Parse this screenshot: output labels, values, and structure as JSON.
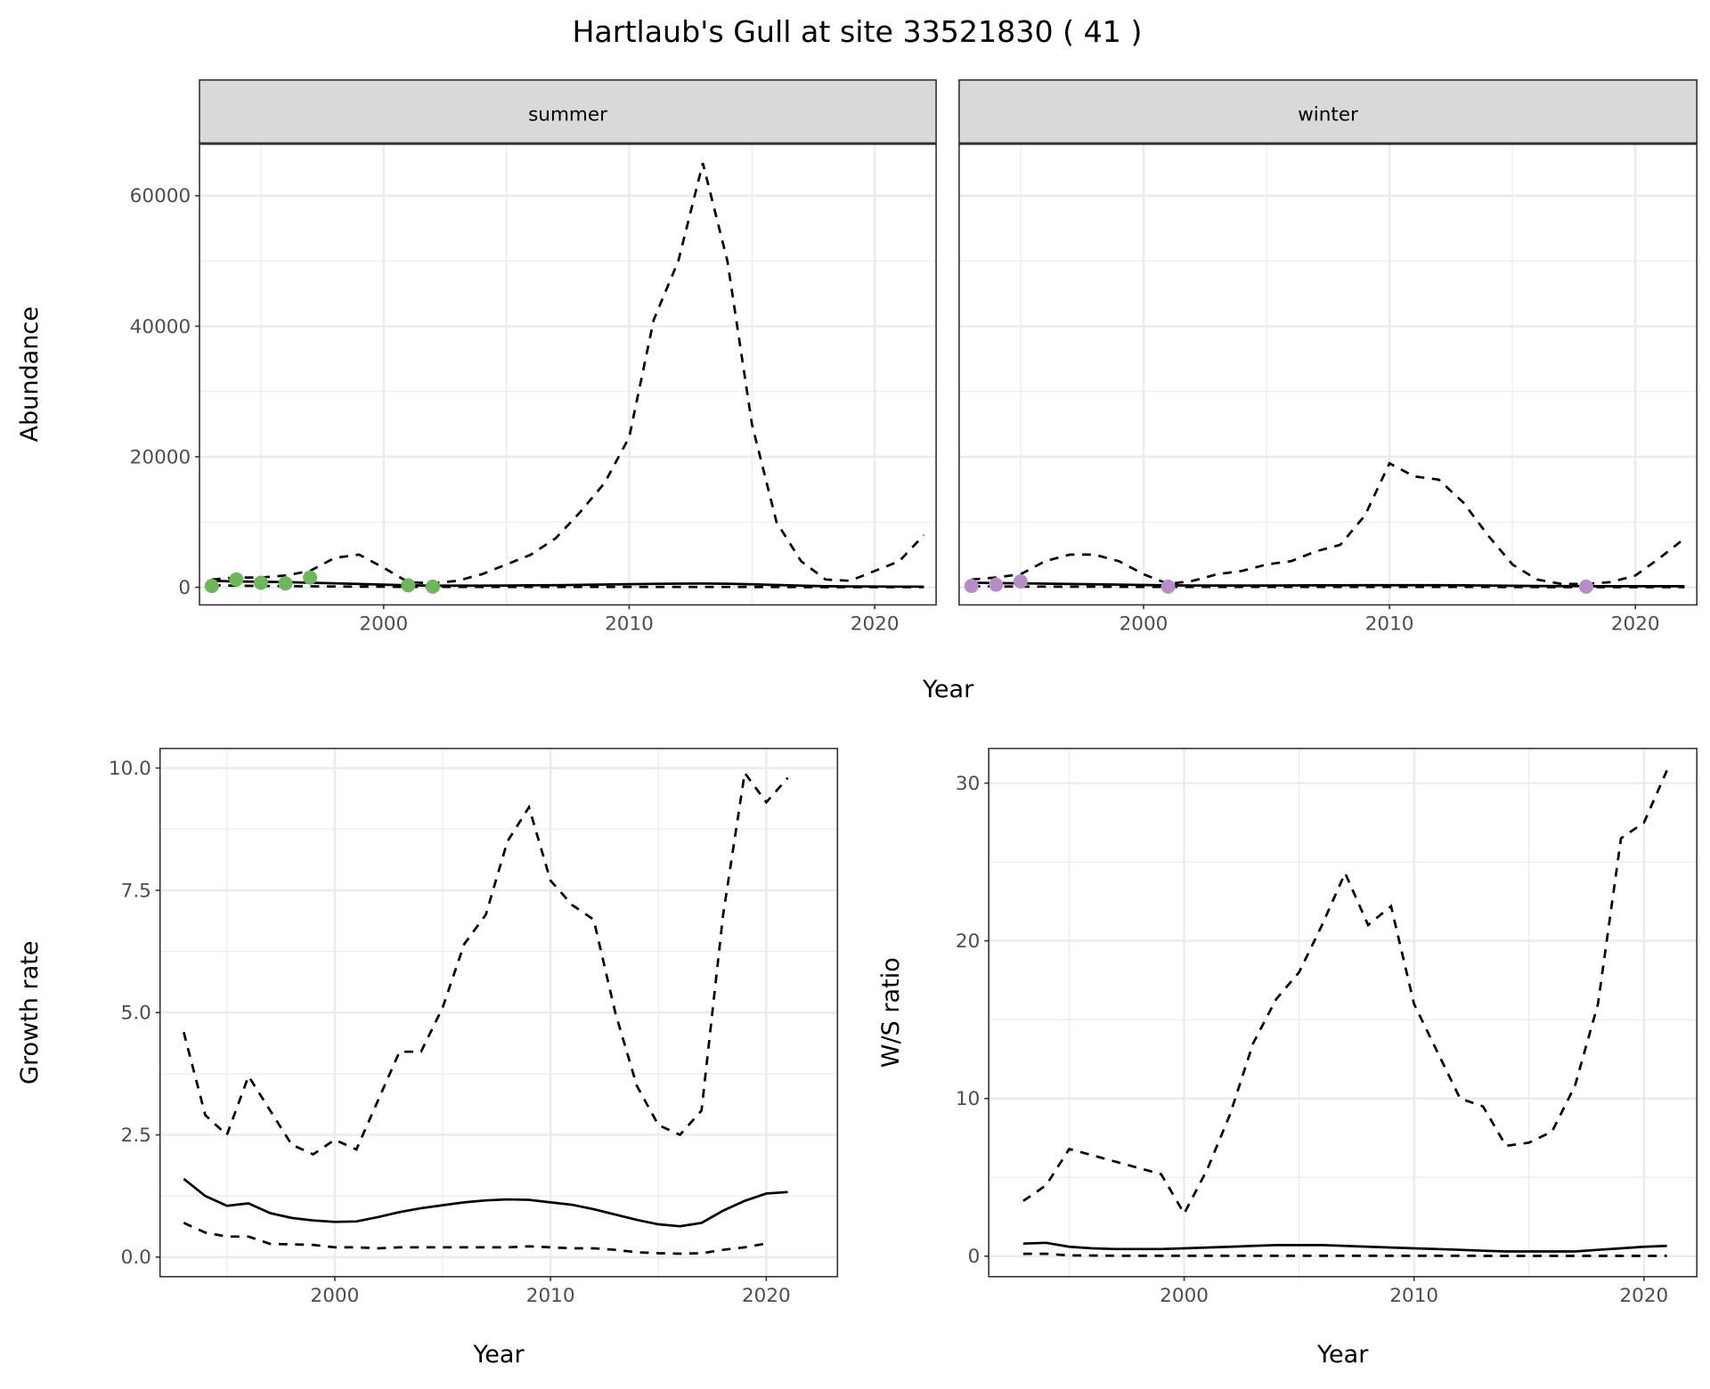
{
  "title": "Hartlaub's Gull at site 33521830 ( 41 )",
  "colors": {
    "summer": "#6DB65B",
    "winter": "#B68DC8",
    "line": "#000000",
    "grid": "#EBEBEB",
    "strip": "#D9D9D9"
  },
  "chart_data": [
    {
      "id": "abundance",
      "type": "line",
      "facets": [
        "summer",
        "winter"
      ],
      "xlabel": "Year",
      "ylabel": "Abundance",
      "xticks": [
        2000,
        2010,
        2020
      ],
      "yticks": [
        0,
        20000,
        40000,
        60000
      ],
      "xlim": [
        1992.5,
        2022.5
      ],
      "ylim": [
        -2700,
        68000
      ],
      "years": [
        1993,
        1994,
        1995,
        1996,
        1997,
        1998,
        1999,
        2000,
        2001,
        2002,
        2003,
        2004,
        2005,
        2006,
        2007,
        2008,
        2009,
        2010,
        2011,
        2012,
        2013,
        2014,
        2015,
        2016,
        2017,
        2018,
        2019,
        2020,
        2021,
        2022
      ],
      "summer": {
        "upper": [
          1200,
          1500,
          1500,
          1800,
          2500,
          4500,
          5000,
          3000,
          800,
          600,
          1000,
          2000,
          3500,
          5000,
          7500,
          11500,
          16000,
          23000,
          41000,
          50000,
          65000,
          50000,
          25000,
          10000,
          4000,
          1200,
          1000,
          2500,
          4000,
          8000
        ],
        "mean": [
          1000,
          900,
          850,
          800,
          700,
          600,
          500,
          400,
          300,
          250,
          250,
          250,
          270,
          300,
          330,
          370,
          420,
          470,
          520,
          560,
          580,
          540,
          460,
          350,
          250,
          180,
          140,
          120,
          110,
          100
        ],
        "lower": [
          300,
          250,
          200,
          180,
          150,
          120,
          100,
          80,
          60,
          50,
          50,
          50,
          50,
          50,
          50,
          50,
          50,
          50,
          50,
          50,
          50,
          50,
          50,
          40,
          30,
          20,
          20,
          20,
          20,
          20
        ],
        "observed": [
          [
            1993,
            200
          ],
          [
            1994,
            1200
          ],
          [
            1995,
            700
          ],
          [
            1996,
            600
          ],
          [
            1997,
            1500
          ],
          [
            2001,
            300
          ],
          [
            2002,
            100
          ]
        ]
      },
      "winter": {
        "upper": [
          1200,
          1500,
          2000,
          4000,
          5000,
          5000,
          4000,
          2000,
          500,
          1000,
          2000,
          2500,
          3500,
          4000,
          5500,
          6500,
          11000,
          19000,
          17000,
          16500,
          13000,
          8000,
          3500,
          1200,
          500,
          500,
          800,
          1800,
          4500,
          7500
        ],
        "mean": [
          700,
          650,
          600,
          550,
          500,
          450,
          400,
          350,
          300,
          280,
          270,
          270,
          280,
          290,
          300,
          310,
          320,
          330,
          330,
          320,
          300,
          270,
          240,
          210,
          190,
          180,
          170,
          170,
          170,
          170
        ],
        "lower": [
          150,
          130,
          110,
          100,
          90,
          80,
          70,
          60,
          50,
          50,
          50,
          50,
          50,
          50,
          50,
          50,
          50,
          50,
          50,
          50,
          50,
          50,
          40,
          30,
          20,
          20,
          20,
          20,
          20,
          20
        ],
        "observed": [
          [
            1993,
            200
          ],
          [
            1994,
            400
          ],
          [
            1995,
            900
          ],
          [
            2001,
            100
          ],
          [
            2018,
            100
          ]
        ]
      }
    },
    {
      "id": "growth",
      "type": "line",
      "xlabel": "Year",
      "ylabel": "Growth rate",
      "xticks": [
        2000,
        2010,
        2020
      ],
      "yticks": [
        "0.0",
        "2.5",
        "5.0",
        "7.5",
        "10.0"
      ],
      "xlim": [
        1991.9,
        2023.3
      ],
      "ylim": [
        -0.4,
        10.4
      ],
      "years": [
        1993,
        1994,
        1995,
        1996,
        1997,
        1998,
        1999,
        2000,
        2001,
        2002,
        2003,
        2004,
        2005,
        2006,
        2007,
        2008,
        2009,
        2010,
        2011,
        2012,
        2013,
        2014,
        2015,
        2016,
        2017,
        2018,
        2019,
        2020,
        2021
      ],
      "upper": [
        4.6,
        2.9,
        2.5,
        3.7,
        3.0,
        2.3,
        2.1,
        2.4,
        2.2,
        3.2,
        4.2,
        4.2,
        5.1,
        6.4,
        7.0,
        8.5,
        9.2,
        7.7,
        7.2,
        6.9,
        5.0,
        3.5,
        2.7,
        2.5,
        3.0,
        7.0,
        9.9,
        9.3,
        9.8
      ],
      "mean": [
        1.6,
        1.25,
        1.05,
        1.1,
        0.9,
        0.8,
        0.75,
        0.72,
        0.73,
        0.82,
        0.92,
        1.0,
        1.06,
        1.12,
        1.16,
        1.18,
        1.17,
        1.12,
        1.07,
        0.98,
        0.87,
        0.76,
        0.67,
        0.63,
        0.7,
        0.95,
        1.15,
        1.3,
        1.33
      ],
      "lower": [
        0.7,
        0.5,
        0.42,
        0.42,
        0.27,
        0.26,
        0.25,
        0.2,
        0.2,
        0.18,
        0.2,
        0.2,
        0.2,
        0.2,
        0.2,
        0.2,
        0.22,
        0.2,
        0.18,
        0.18,
        0.15,
        0.1,
        0.08,
        0.07,
        0.08,
        0.15,
        0.2,
        0.28,
        null
      ]
    },
    {
      "id": "ratio",
      "type": "line",
      "xlabel": "Year",
      "ylabel": "W/S ratio",
      "xticks": [
        2000,
        2010,
        2020
      ],
      "yticks": [
        0,
        10,
        20,
        30
      ],
      "xlim": [
        1991.5,
        2022.3
      ],
      "ylim": [
        -1.3,
        32.2
      ],
      "years": [
        1993,
        1994,
        1995,
        1996,
        1997,
        1998,
        1999,
        2000,
        2001,
        2002,
        2003,
        2004,
        2005,
        2006,
        2007,
        2008,
        2009,
        2010,
        2011,
        2012,
        2013,
        2014,
        2015,
        2016,
        2017,
        2018,
        2019,
        2020,
        2021
      ],
      "upper": [
        3.5,
        4.5,
        6.8,
        6.4,
        6.0,
        5.6,
        5.2,
        2.7,
        5.5,
        9,
        13.5,
        16.3,
        18,
        21,
        24.3,
        21,
        22.2,
        16,
        13,
        10,
        9.5,
        7,
        7.2,
        7.9,
        10.8,
        16,
        26.5,
        27.5,
        30.8
      ],
      "mean": [
        0.8,
        0.85,
        0.6,
        0.5,
        0.45,
        0.45,
        0.45,
        0.5,
        0.55,
        0.6,
        0.65,
        0.7,
        0.7,
        0.7,
        0.65,
        0.6,
        0.55,
        0.5,
        0.45,
        0.4,
        0.35,
        0.3,
        0.3,
        0.3,
        0.3,
        0.4,
        0.5,
        0.6,
        0.65
      ],
      "lower": [
        0.15,
        0.15,
        0.05,
        0.04,
        0.03,
        0.03,
        0.03,
        0.03,
        0.03,
        0.03,
        0.03,
        0.03,
        0.03,
        0.03,
        0.03,
        0.03,
        0.03,
        0.03,
        0.03,
        0.03,
        0.02,
        0.02,
        0.02,
        0.02,
        0.02,
        0.02,
        0.02,
        0.02,
        0.02
      ]
    }
  ]
}
